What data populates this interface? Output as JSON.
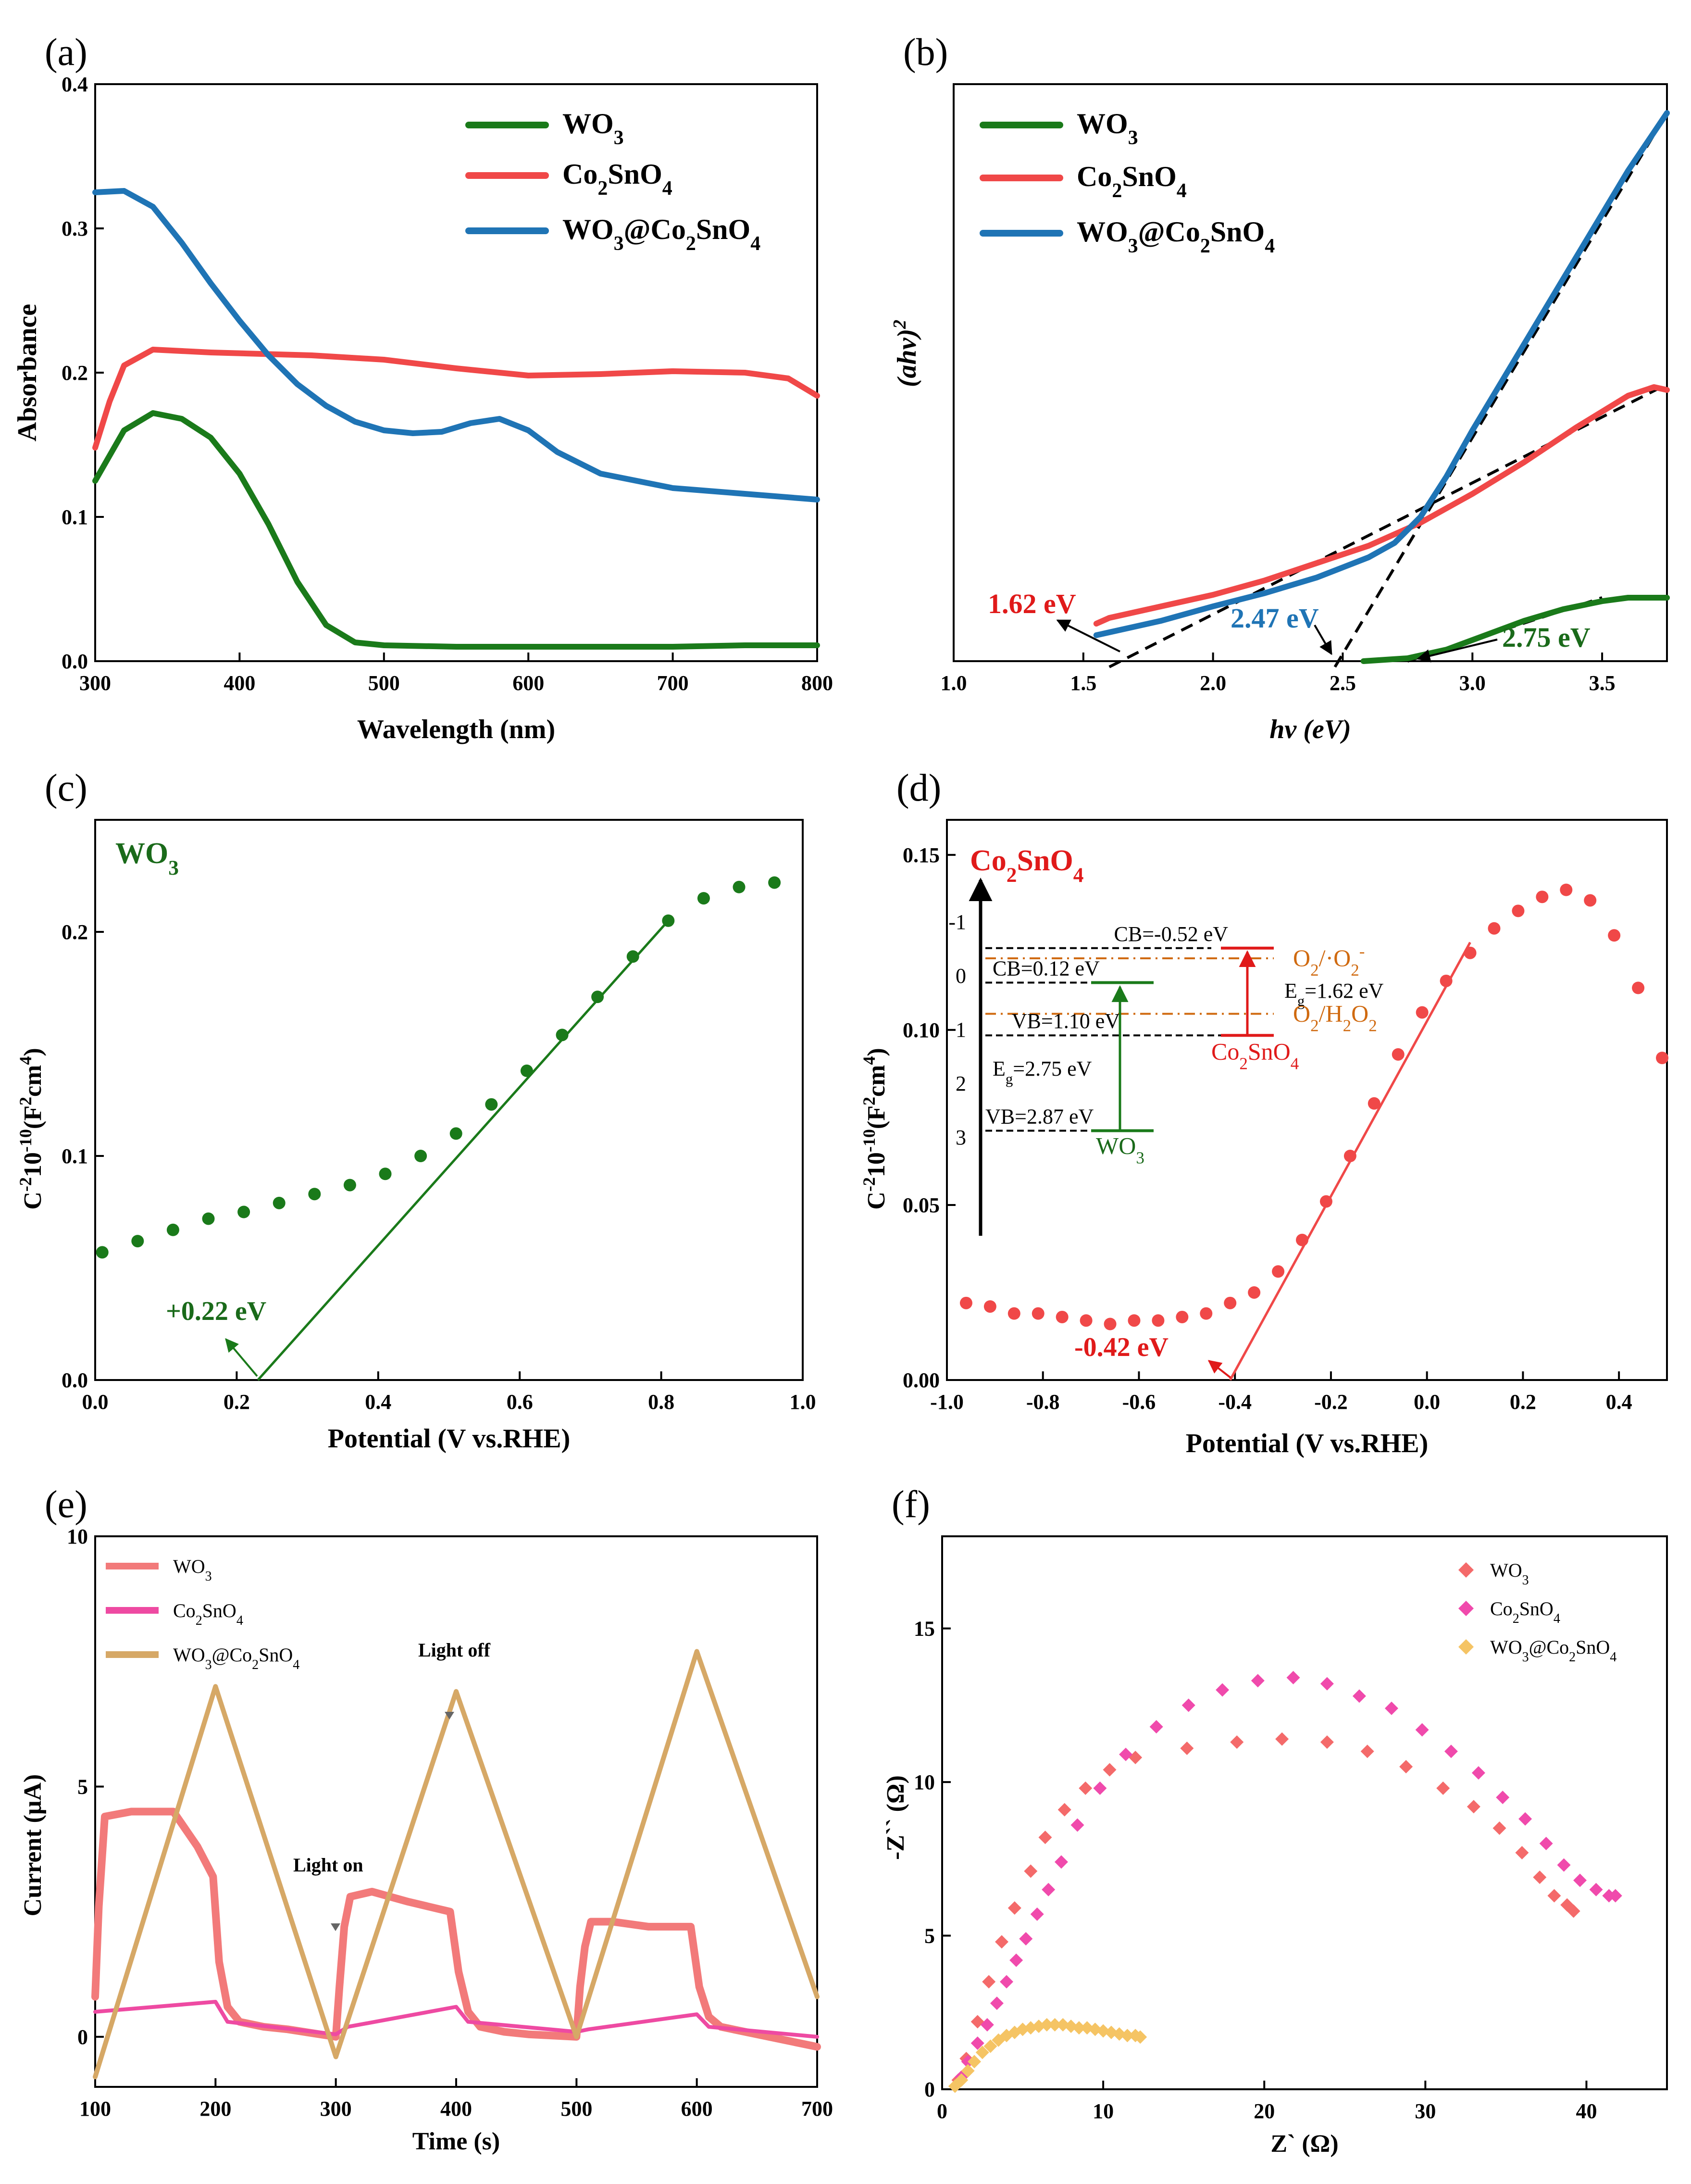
{
  "colors": {
    "wo3": "#1a7a1a",
    "co2sno4": "#f04848",
    "composite": "#1f74b5",
    "red_text": "#e01a1a",
    "blue_text": "#1f74b5",
    "green_text": "#1a6a1a",
    "orange": "#d06a10",
    "e_wo3": "#f27a7a",
    "e_co": "#ee4aa2",
    "e_comp": "#d6a866",
    "f_wo3": "#f46a6a",
    "f_co": "#f04aac",
    "f_comp": "#f5c464",
    "axis": "#000000"
  },
  "chart_data": [
    {
      "id": "a",
      "panel_label": "(a)",
      "type": "line",
      "xlabel": "Wavelength (nm)",
      "ylabel": "Absorbance",
      "xlim": [
        300,
        800
      ],
      "ylim": [
        0,
        0.4
      ],
      "xticks": [
        "300",
        "400",
        "500",
        "600",
        "700",
        "800"
      ],
      "yticks": [
        "0.0",
        "0.1",
        "0.2",
        "0.3",
        "0.4"
      ],
      "legend": [
        "WO3",
        "Co2SnO4",
        "WO3@Co2SnO4"
      ],
      "series": [
        {
          "name": "WO3",
          "color_key": "wo3",
          "x": [
            300,
            320,
            340,
            360,
            380,
            400,
            420,
            440,
            460,
            480,
            500,
            550,
            600,
            650,
            700,
            750,
            800
          ],
          "y": [
            0.125,
            0.16,
            0.172,
            0.168,
            0.155,
            0.13,
            0.095,
            0.055,
            0.025,
            0.013,
            0.011,
            0.01,
            0.01,
            0.01,
            0.01,
            0.011,
            0.011
          ]
        },
        {
          "name": "Co2SnO4",
          "color_key": "co2sno4",
          "x": [
            300,
            310,
            320,
            340,
            380,
            450,
            500,
            550,
            600,
            650,
            700,
            750,
            780,
            800
          ],
          "y": [
            0.148,
            0.18,
            0.205,
            0.216,
            0.214,
            0.212,
            0.209,
            0.203,
            0.198,
            0.199,
            0.201,
            0.2,
            0.196,
            0.184
          ]
        },
        {
          "name": "WO3@Co2SnO4",
          "color_key": "composite",
          "x": [
            300,
            320,
            340,
            360,
            380,
            400,
            420,
            440,
            460,
            480,
            500,
            520,
            540,
            560,
            580,
            600,
            620,
            650,
            700,
            750,
            800
          ],
          "y": [
            0.325,
            0.326,
            0.315,
            0.29,
            0.262,
            0.236,
            0.212,
            0.192,
            0.177,
            0.166,
            0.16,
            0.158,
            0.159,
            0.165,
            0.168,
            0.16,
            0.145,
            0.13,
            0.12,
            0.116,
            0.112
          ]
        }
      ]
    },
    {
      "id": "b",
      "panel_label": "(b)",
      "type": "line",
      "xlabel": "hv (eV)",
      "ylabel": "(ahv)2",
      "xlim": [
        1.0,
        3.75
      ],
      "ylim": [
        0,
        1
      ],
      "xticks": [
        "1.0",
        "1.5",
        "2.0",
        "2.5",
        "3.0",
        "3.5"
      ],
      "legend": [
        "WO3",
        "Co2SnO4",
        "WO3@Co2SnO4"
      ],
      "series": [
        {
          "name": "WO3",
          "color_key": "wo3",
          "x": [
            2.58,
            2.75,
            2.9,
            3.05,
            3.2,
            3.35,
            3.5,
            3.6,
            3.75
          ],
          "y": [
            0.0,
            0.005,
            0.02,
            0.045,
            0.07,
            0.09,
            0.104,
            0.11,
            0.11
          ]
        },
        {
          "name": "Co2SnO4",
          "color_key": "co2sno4",
          "x": [
            1.55,
            1.6,
            1.8,
            2.0,
            2.2,
            2.4,
            2.6,
            2.8,
            3.0,
            3.2,
            3.4,
            3.6,
            3.7,
            3.75
          ],
          "y": [
            0.065,
            0.075,
            0.095,
            0.115,
            0.14,
            0.17,
            0.2,
            0.24,
            0.29,
            0.345,
            0.405,
            0.46,
            0.475,
            0.47
          ]
        },
        {
          "name": "WO3@Co2SnO4",
          "color_key": "composite",
          "x": [
            1.55,
            1.6,
            1.8,
            2.0,
            2.2,
            2.4,
            2.6,
            2.7,
            2.8,
            2.9,
            3.0,
            3.2,
            3.4,
            3.6,
            3.75
          ],
          "y": [
            0.045,
            0.05,
            0.07,
            0.095,
            0.118,
            0.145,
            0.18,
            0.205,
            0.25,
            0.32,
            0.4,
            0.55,
            0.7,
            0.85,
            0.95
          ]
        }
      ],
      "fit_lines": [
        {
          "x": [
            1.6,
            3.75
          ],
          "y": [
            -0.01,
            0.48
          ]
        },
        {
          "x": [
            2.47,
            3.75
          ],
          "y": [
            -0.01,
            0.95
          ]
        },
        {
          "x": [
            2.75,
            3.5
          ],
          "y": [
            0.0,
            0.11
          ]
        }
      ],
      "annotations": [
        "1.62 eV",
        "2.47 eV",
        "2.75 eV"
      ]
    },
    {
      "id": "c",
      "panel_label": "(c)",
      "type": "scatter",
      "xlabel": "Potential (V vs.RHE)",
      "ylabel": "C-210-10(F2cm4)",
      "xlim": [
        0.0,
        1.0
      ],
      "ylim": [
        0.0,
        0.25
      ],
      "xticks": [
        "0.0",
        "0.2",
        "0.4",
        "0.6",
        "0.8",
        "1.0"
      ],
      "yticks": [
        "0.0",
        "0.1",
        "0.2"
      ],
      "series": [
        {
          "name": "WO3",
          "color_key": "wo3",
          "x": [
            0.01,
            0.06,
            0.11,
            0.16,
            0.21,
            0.26,
            0.31,
            0.36,
            0.41,
            0.46,
            0.51,
            0.56,
            0.61,
            0.66,
            0.71,
            0.76,
            0.81,
            0.86,
            0.91,
            0.96
          ],
          "y": [
            0.057,
            0.062,
            0.067,
            0.072,
            0.075,
            0.079,
            0.083,
            0.087,
            0.092,
            0.1,
            0.11,
            0.123,
            0.138,
            0.154,
            0.171,
            0.189,
            0.205,
            0.215,
            0.22,
            0.222
          ]
        }
      ],
      "fit_line": {
        "x": [
          0.23,
          0.81
        ],
        "y": [
          0.0,
          0.205
        ]
      },
      "annotations": [
        "WO3",
        "+0.22 eV"
      ]
    },
    {
      "id": "d",
      "panel_label": "(d)",
      "type": "scatter",
      "xlabel": "Potential (V vs.RHE)",
      "ylabel": "C-210-10(F2cm4)",
      "xlim": [
        -1.0,
        0.5
      ],
      "ylim": [
        0.0,
        0.16
      ],
      "xticks": [
        "-1.0",
        "-0.8",
        "-0.6",
        "-0.4",
        "-0.2",
        "0.0",
        "0.2",
        "0.4"
      ],
      "yticks": [
        "0.00",
        "0.05",
        "0.10",
        "0.15"
      ],
      "series": [
        {
          "name": "Co2SnO4",
          "color_key": "co2sno4",
          "x": [
            -0.96,
            -0.91,
            -0.86,
            -0.81,
            -0.76,
            -0.71,
            -0.66,
            -0.61,
            -0.56,
            -0.51,
            -0.46,
            -0.41,
            -0.36,
            -0.31,
            -0.26,
            -0.21,
            -0.16,
            -0.11,
            -0.06,
            -0.01,
            0.04,
            0.09,
            0.14,
            0.19,
            0.24,
            0.29,
            0.34,
            0.39,
            0.44,
            0.49
          ],
          "y": [
            0.022,
            0.021,
            0.019,
            0.019,
            0.018,
            0.017,
            0.016,
            0.017,
            0.017,
            0.018,
            0.019,
            0.022,
            0.025,
            0.031,
            0.04,
            0.051,
            0.064,
            0.079,
            0.093,
            0.105,
            0.114,
            0.122,
            0.129,
            0.134,
            0.138,
            0.14,
            0.137,
            0.127,
            0.112,
            0.092
          ]
        }
      ],
      "fit_line": {
        "x": [
          -0.41,
          0.09
        ],
        "y": [
          0.0,
          0.125
        ]
      },
      "annotations": [
        "Co2SnO4",
        "-0.42 eV"
      ],
      "inset": {
        "axis_ticks": [
          "-1",
          "0",
          "1",
          "2",
          "3"
        ],
        "labels": [
          "CB=-0.52 eV",
          "CB=0.12 eV",
          "VB=1.10 eV",
          "Eg=2.75 eV",
          "VB=2.87 eV",
          "Eg=1.62 eV",
          "O2/·O2-",
          "O2/H2O2",
          "Co2SnO4",
          "WO3"
        ]
      }
    },
    {
      "id": "e",
      "panel_label": "(e)",
      "type": "line",
      "xlabel": "Time (s)",
      "ylabel": "Current (μA)",
      "xlim": [
        100,
        700
      ],
      "ylim": [
        -1,
        10
      ],
      "xticks": [
        "100",
        "200",
        "300",
        "400",
        "500",
        "600",
        "700"
      ],
      "yticks": [
        "0",
        "5",
        "10"
      ],
      "legend": [
        "WO3",
        "Co2SnO4",
        "WO3@Co2SnO4"
      ],
      "annotations": [
        "Light on",
        "Light off"
      ],
      "series": [
        {
          "name": "WO3",
          "color_key": "e_wo3",
          "x": [
            100,
            103,
            108,
            130,
            150,
            165,
            185,
            198,
            203,
            210,
            220,
            240,
            260,
            300,
            303,
            307,
            312,
            330,
            360,
            395,
            402,
            410,
            420,
            440,
            460,
            500,
            503,
            507,
            512,
            530,
            560,
            595,
            602,
            610,
            620,
            640,
            660,
            700
          ],
          "y": [
            0.8,
            2.6,
            4.4,
            4.5,
            4.5,
            4.5,
            3.8,
            3.2,
            1.5,
            0.6,
            0.3,
            0.2,
            0.15,
            0.0,
            1.0,
            2.2,
            2.8,
            2.9,
            2.7,
            2.5,
            1.3,
            0.5,
            0.2,
            0.1,
            0.05,
            0.0,
            1.0,
            1.8,
            2.3,
            2.3,
            2.2,
            2.2,
            1.0,
            0.4,
            0.2,
            0.1,
            0.0,
            -0.2
          ]
        },
        {
          "name": "Co2SnO4",
          "color_key": "e_co",
          "x": [
            100,
            150,
            200,
            210,
            300,
            310,
            400,
            410,
            500,
            510,
            600,
            610,
            700
          ],
          "y": [
            0.5,
            0.6,
            0.7,
            0.3,
            0.05,
            0.2,
            0.6,
            0.3,
            0.1,
            0.15,
            0.45,
            0.2,
            0.0
          ]
        },
        {
          "name": "WO3@Co2SnO4",
          "color_key": "e_comp",
          "x": [
            100,
            200,
            300,
            400,
            500,
            600,
            700
          ],
          "y": [
            -0.8,
            7.0,
            -0.4,
            6.9,
            0.0,
            7.7,
            0.8
          ]
        }
      ]
    },
    {
      "id": "f",
      "panel_label": "(f)",
      "type": "scatter",
      "xlabel": "Z` (Ω)",
      "ylabel": "-Z`` (Ω)",
      "xlim": [
        0,
        45
      ],
      "ylim": [
        0,
        18
      ],
      "xticks": [
        "0",
        "10",
        "20",
        "30",
        "40"
      ],
      "yticks": [
        "0",
        "5",
        "10",
        "15"
      ],
      "legend": [
        "WO3",
        "Co2SnO4",
        "WO3@Co2SnO4"
      ],
      "series": [
        {
          "name": "WO3",
          "color_key": "f_wo3",
          "x": [
            1.0,
            1.5,
            2.2,
            2.9,
            3.7,
            4.5,
            5.5,
            6.4,
            7.6,
            8.9,
            10.4,
            12.0,
            15.2,
            18.3,
            21.1,
            23.9,
            26.4,
            28.8,
            31.1,
            33.0,
            34.6,
            36.0,
            37.1,
            38.0,
            38.8,
            39.2
          ],
          "y": [
            0.3,
            1.0,
            2.2,
            3.5,
            4.8,
            5.9,
            7.1,
            8.2,
            9.1,
            9.8,
            10.4,
            10.8,
            11.1,
            11.3,
            11.4,
            11.3,
            11.0,
            10.5,
            9.8,
            9.2,
            8.5,
            7.7,
            6.9,
            6.3,
            6.0,
            5.8
          ]
        },
        {
          "name": "Co2SnO4",
          "color_key": "f_co",
          "x": [
            1.2,
            1.6,
            2.2,
            2.8,
            3.4,
            4.0,
            4.6,
            5.2,
            5.9,
            6.6,
            7.4,
            8.4,
            9.8,
            11.4,
            13.3,
            15.3,
            17.4,
            19.6,
            21.8,
            23.9,
            25.9,
            27.9,
            29.8,
            31.6,
            33.3,
            34.8,
            36.2,
            37.5,
            38.6,
            39.6,
            40.6,
            41.4,
            41.8
          ],
          "y": [
            0.4,
            0.9,
            1.5,
            2.1,
            2.8,
            3.5,
            4.2,
            4.9,
            5.7,
            6.5,
            7.4,
            8.6,
            9.8,
            10.9,
            11.8,
            12.5,
            13.0,
            13.3,
            13.4,
            13.2,
            12.8,
            12.4,
            11.7,
            11.0,
            10.3,
            9.5,
            8.8,
            8.0,
            7.3,
            6.8,
            6.5,
            6.3,
            6.3
          ]
        },
        {
          "name": "WO3@Co2SnO4",
          "color_key": "f_comp",
          "x": [
            0.8,
            1.2,
            1.6,
            2.0,
            2.5,
            3.0,
            3.5,
            4.0,
            4.5,
            5.0,
            5.5,
            6.0,
            6.5,
            7.0,
            7.5,
            8.0,
            8.5,
            9.0,
            9.5,
            10.0,
            10.5,
            11.0,
            11.5,
            12.0,
            12.3
          ],
          "y": [
            0.1,
            0.3,
            0.6,
            0.9,
            1.2,
            1.4,
            1.6,
            1.75,
            1.85,
            1.95,
            2.0,
            2.05,
            2.1,
            2.1,
            2.1,
            2.05,
            2.0,
            2.0,
            1.95,
            1.9,
            1.85,
            1.8,
            1.75,
            1.75,
            1.7
          ]
        }
      ]
    }
  ]
}
